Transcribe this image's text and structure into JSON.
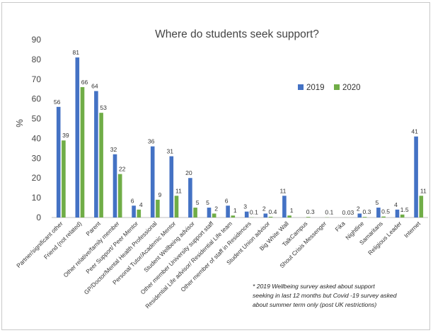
{
  "chart_data": {
    "type": "bar",
    "title": "Where do students seek support?",
    "xlabel": "",
    "ylabel": "%",
    "ylim": [
      0,
      90
    ],
    "yticks": [
      0,
      10,
      20,
      30,
      40,
      50,
      60,
      70,
      80,
      90
    ],
    "grid": false,
    "legend_position": "top-right",
    "colors": {
      "2019": "#4472c4",
      "2020": "#70ad47"
    },
    "categories": [
      "Partner/significant other",
      "Friend (not related)",
      "Parent",
      "Other relative/family member",
      "Peer Support/ Peer Mentor",
      "GP/Doctor/Mental Health Professional",
      "Personal Tutor/Academic Mentor",
      "Student Wellbeing advisor",
      "Other member University support staff",
      "Residential Life advisor/ Residential Life team",
      "Other member of staff in Residences",
      "Student Union advisor",
      "Big White Wall",
      "TalkCampus",
      "Shout Crisis Messenger",
      "Fika",
      "Nightline",
      "Samaritans",
      "Religious Leader",
      "Internet"
    ],
    "series": [
      {
        "name": "2019",
        "values": [
          56,
          81,
          64,
          32,
          6,
          36,
          31,
          20,
          5,
          6,
          3,
          2,
          11,
          null,
          null,
          null,
          2,
          5,
          4,
          41
        ],
        "labels": [
          "56",
          "81",
          "64",
          "32",
          "6",
          "36",
          "31",
          "20",
          "5",
          "6",
          "3",
          "2",
          "11",
          "",
          "",
          "",
          "2",
          "5",
          "4",
          "41"
        ]
      },
      {
        "name": "2020",
        "values": [
          39,
          66,
          53,
          22,
          4,
          9,
          11,
          5,
          2,
          1,
          0.1,
          0.4,
          1,
          0.3,
          0.1,
          0.03,
          0.3,
          0.5,
          1.5,
          11
        ],
        "labels": [
          "39",
          "66",
          "53",
          "22",
          "4",
          "9",
          "11",
          "5",
          "2",
          "1",
          "0.1",
          "0.4",
          "1",
          "0.3",
          "0.1",
          "0.03",
          "0.3",
          "0.5",
          "1.5",
          "11"
        ]
      }
    ],
    "footnote": [
      "* 2019 Wellbeing survey asked about support",
      "seeking in last 12 months but Covid -19 survey asked",
      "about summer term only (post UK restrictions)"
    ]
  }
}
